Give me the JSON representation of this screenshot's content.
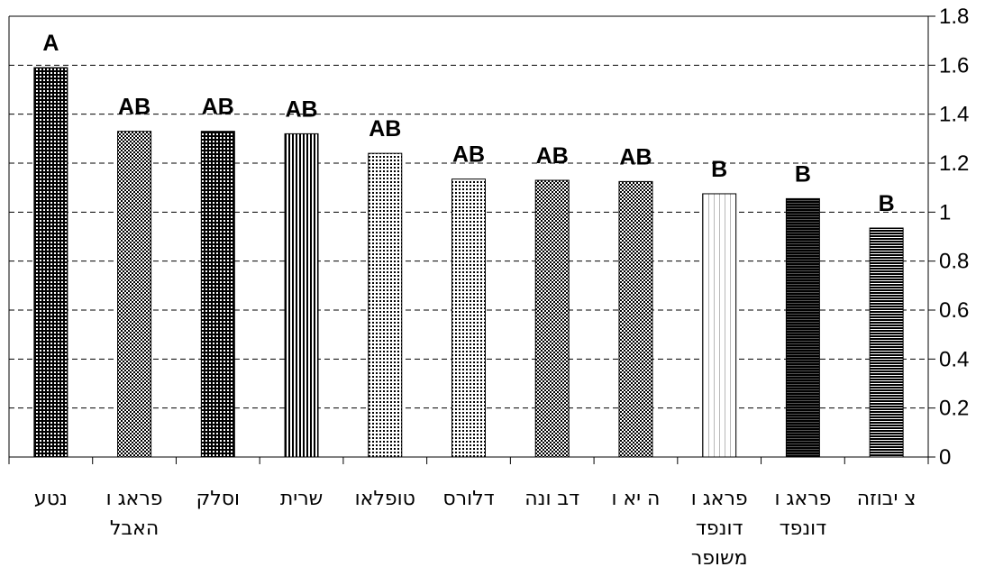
{
  "chart_data": {
    "type": "bar",
    "categories": [
      [
        "נטע"
      ],
      [
        "פראג ו",
        "האבל"
      ],
      [
        "וסלק"
      ],
      [
        "שרית"
      ],
      [
        "טופלאו"
      ],
      [
        "דלורס"
      ],
      [
        "דב ונה"
      ],
      [
        "ה יא ו"
      ],
      [
        "פראג ו",
        "דונפד",
        "משופר"
      ],
      [
        "פראג ו",
        "דונפד"
      ],
      [
        "צ יבוזה"
      ]
    ],
    "values": [
      1.59,
      1.33,
      1.33,
      1.32,
      1.24,
      1.135,
      1.13,
      1.125,
      1.075,
      1.055,
      0.935
    ],
    "significance": [
      "A",
      "AB",
      "AB",
      "AB",
      "AB",
      "AB",
      "AB",
      "AB",
      "B",
      "B",
      "B"
    ],
    "patterns": [
      "dense-check",
      "check",
      "dense-check",
      "vertical",
      "dots",
      "dots",
      "check",
      "check",
      "light-vertical",
      "horizontal-dark",
      "horizontal"
    ],
    "ylim": [
      0,
      1.8
    ],
    "yticks": [
      "0",
      "0.2",
      "0.4",
      "0.6",
      "0.8",
      "1",
      "1.2",
      "1.4",
      "1.6",
      "1.8"
    ],
    "y_axis_side": "right",
    "grid": "dashed horizontal",
    "title": "",
    "xlabel": "",
    "ylabel": ""
  }
}
